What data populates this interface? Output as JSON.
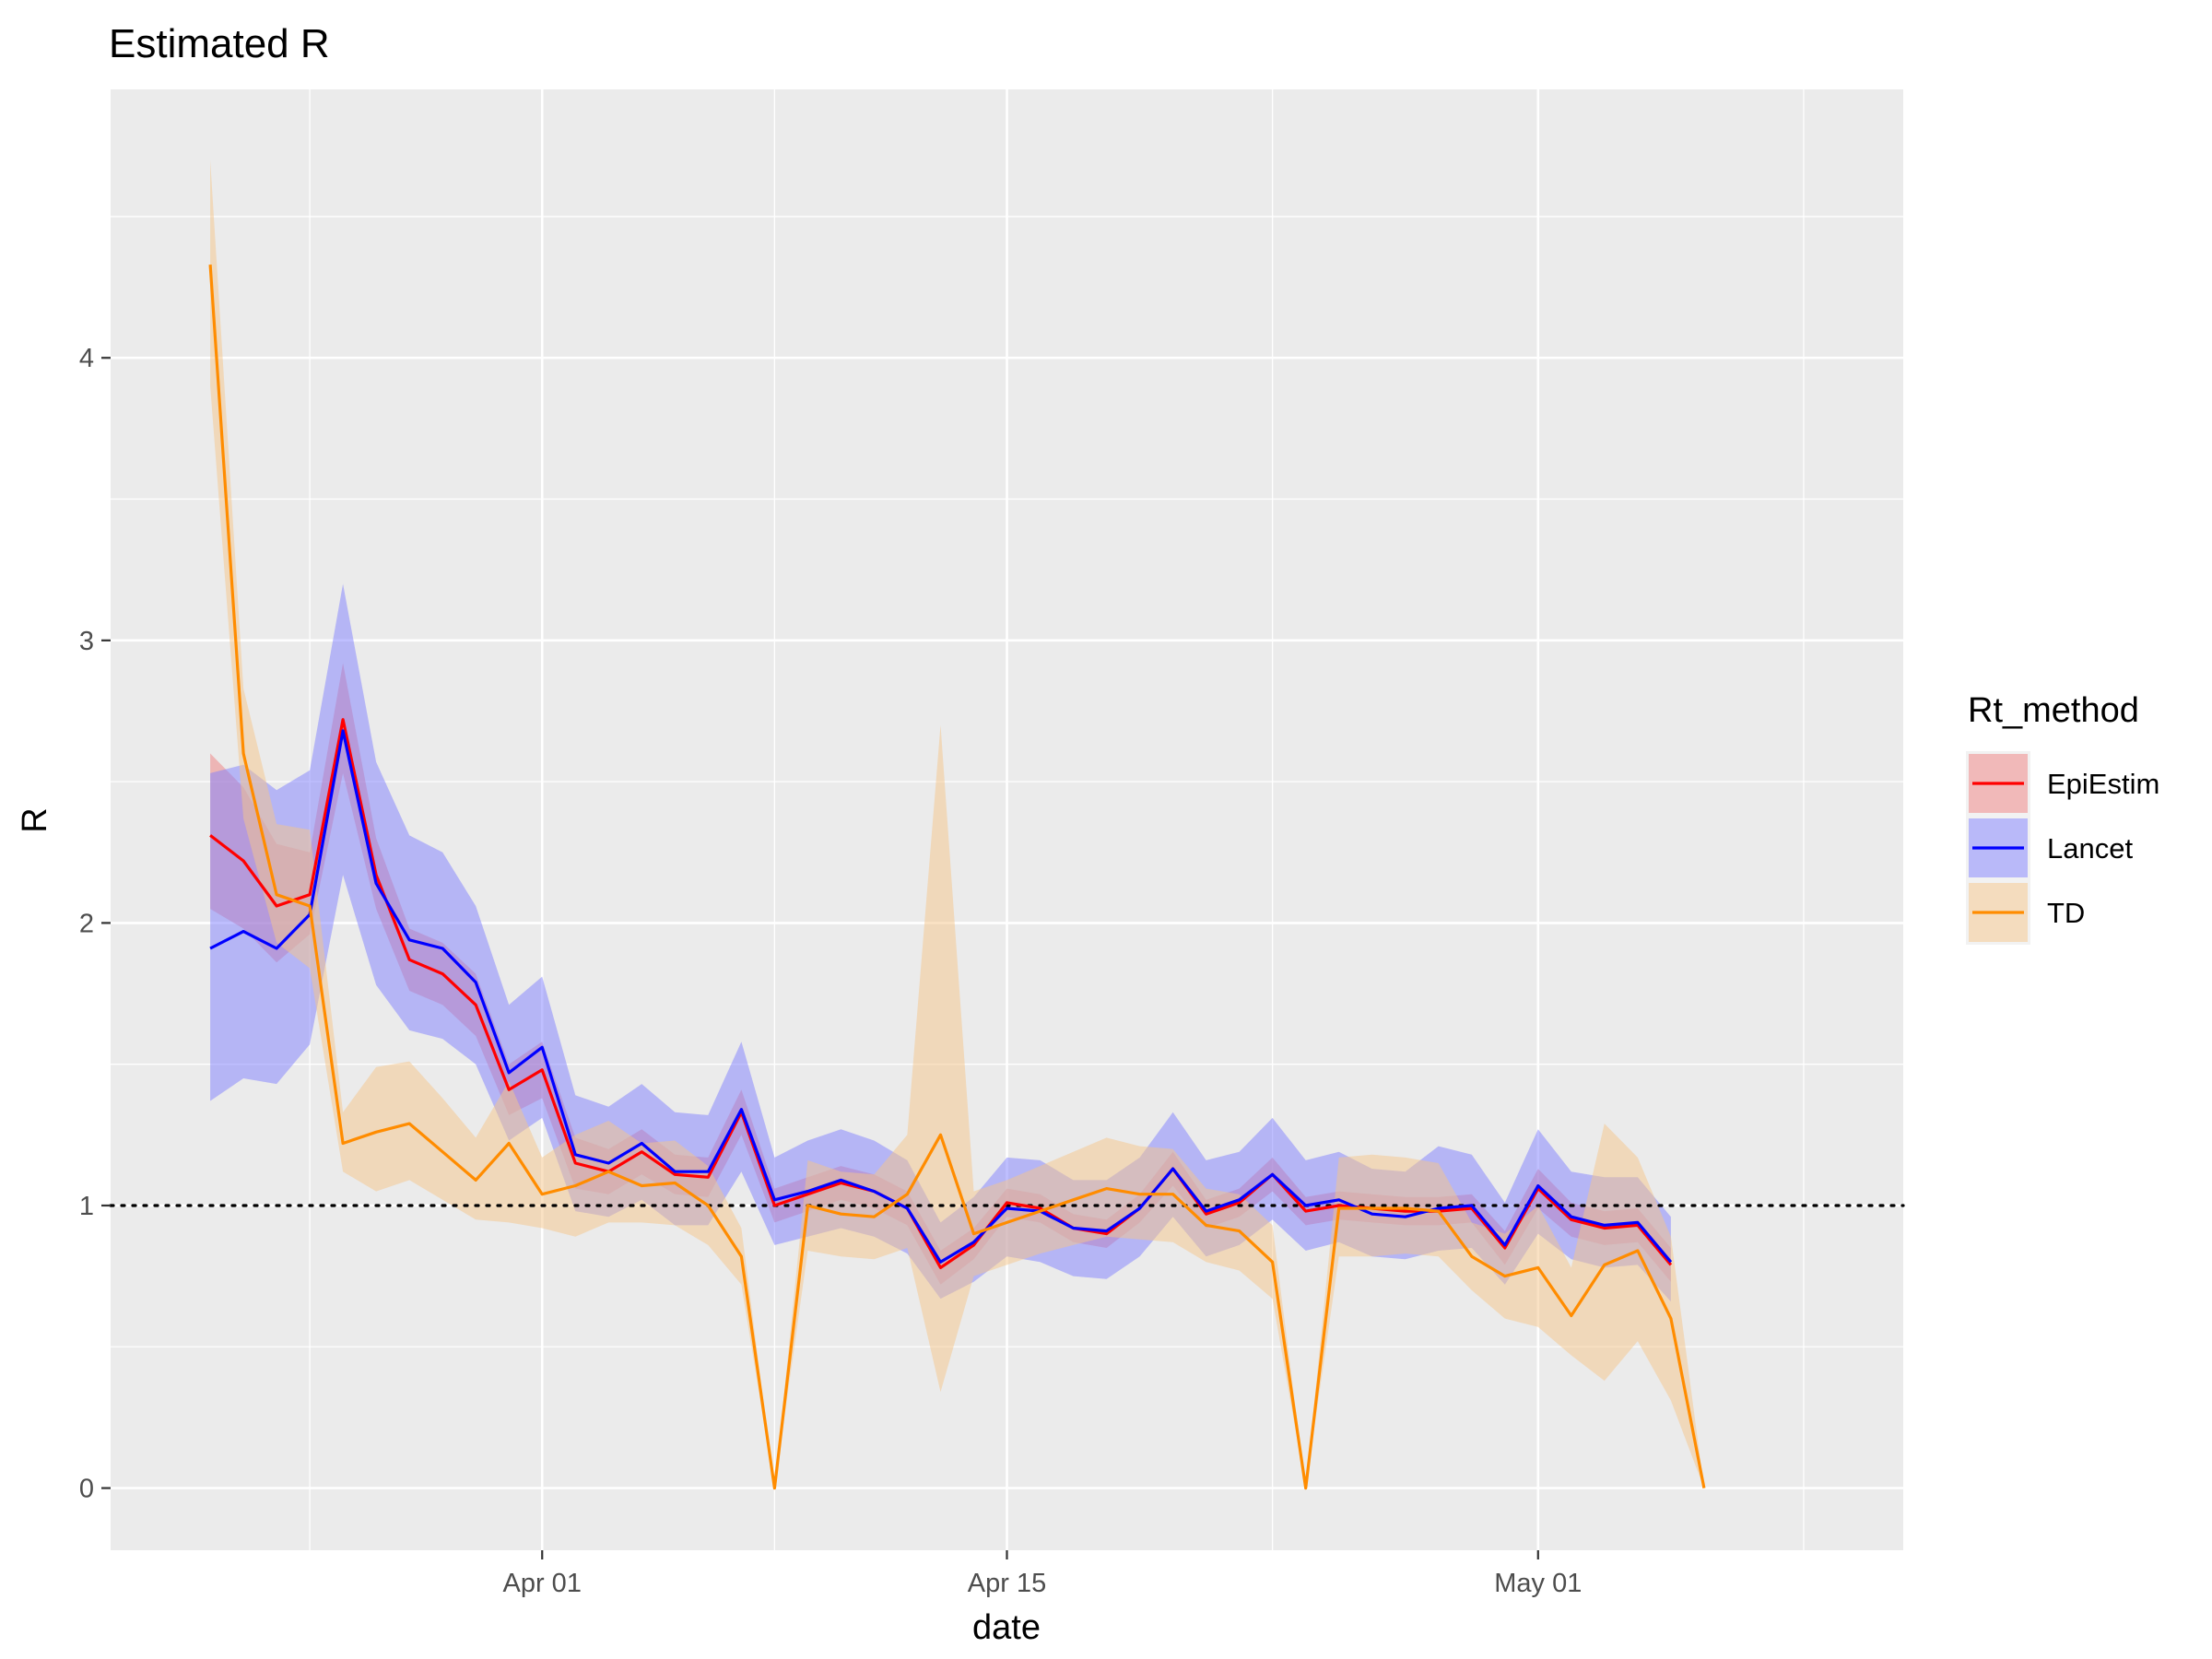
{
  "chart_data": {
    "type": "line",
    "title": "Estimated R",
    "xlabel": "date",
    "ylabel": "R",
    "x_start": "2020-03-22",
    "x_range": [
      "2020-03-19",
      "2020-05-12"
    ],
    "xticks": [
      {
        "label": "Apr 01",
        "date": "2020-04-01"
      },
      {
        "label": "Apr 15",
        "date": "2020-04-15"
      },
      {
        "label": "May 01",
        "date": "2020-05-01"
      }
    ],
    "ylim": [
      -0.22,
      4.95
    ],
    "yticks": [
      0,
      1,
      2,
      3,
      4
    ],
    "reference_line": {
      "y": 1,
      "style": "dotted"
    },
    "grid": true,
    "legend": {
      "title": "Rt_method",
      "position": "right"
    },
    "series": [
      {
        "name": "EpiEstim",
        "color": "#ff0000",
        "fill": "#f08080",
        "values": [
          2.31,
          2.22,
          2.06,
          2.1,
          2.72,
          2.17,
          1.87,
          1.82,
          1.71,
          1.41,
          1.48,
          1.15,
          1.12,
          1.19,
          1.11,
          1.1,
          1.33,
          1.0,
          1.04,
          1.08,
          1.05,
          0.99,
          0.78,
          0.86,
          1.01,
          0.99,
          0.92,
          0.9,
          0.99,
          1.13,
          0.97,
          1.01,
          1.11,
          0.98,
          1.0,
          0.99,
          0.98,
          0.98,
          0.99,
          0.85,
          1.06,
          0.95,
          0.92,
          0.93,
          0.79
        ],
        "lower": [
          2.05,
          1.98,
          1.86,
          1.96,
          2.53,
          2.05,
          1.76,
          1.71,
          1.6,
          1.32,
          1.38,
          1.06,
          1.04,
          1.11,
          1.04,
          1.03,
          1.25,
          0.94,
          0.98,
          1.02,
          0.99,
          0.93,
          0.72,
          0.81,
          0.96,
          0.94,
          0.87,
          0.85,
          0.94,
          1.07,
          0.92,
          0.96,
          1.05,
          0.93,
          0.95,
          0.94,
          0.93,
          0.93,
          0.94,
          0.79,
          0.99,
          0.89,
          0.86,
          0.87,
          0.73
        ],
        "upper": [
          2.6,
          2.48,
          2.28,
          2.25,
          2.92,
          2.3,
          1.98,
          1.93,
          1.82,
          1.5,
          1.58,
          1.24,
          1.2,
          1.27,
          1.18,
          1.17,
          1.41,
          1.06,
          1.1,
          1.14,
          1.11,
          1.05,
          0.84,
          0.92,
          1.06,
          1.04,
          0.97,
          0.95,
          1.04,
          1.19,
          1.02,
          1.06,
          1.17,
          1.03,
          1.05,
          1.04,
          1.03,
          1.03,
          1.04,
          0.91,
          1.13,
          1.01,
          0.98,
          0.99,
          0.85
        ]
      },
      {
        "name": "Lancet",
        "color": "#0000ff",
        "fill": "#8080ff",
        "values": [
          1.91,
          1.97,
          1.91,
          2.03,
          2.68,
          2.14,
          1.94,
          1.91,
          1.79,
          1.47,
          1.56,
          1.18,
          1.15,
          1.22,
          1.12,
          1.12,
          1.34,
          1.02,
          1.05,
          1.09,
          1.05,
          0.99,
          0.8,
          0.87,
          0.99,
          0.98,
          0.92,
          0.91,
          0.99,
          1.13,
          0.98,
          1.02,
          1.11,
          1.0,
          1.02,
          0.97,
          0.96,
          0.99,
          1.0,
          0.86,
          1.07,
          0.96,
          0.93,
          0.94,
          0.8
        ],
        "lower": [
          1.37,
          1.45,
          1.43,
          1.57,
          2.17,
          1.78,
          1.62,
          1.59,
          1.5,
          1.23,
          1.31,
          0.98,
          0.96,
          1.02,
          0.93,
          0.93,
          1.12,
          0.86,
          0.89,
          0.92,
          0.89,
          0.83,
          0.67,
          0.73,
          0.82,
          0.8,
          0.75,
          0.74,
          0.82,
          0.96,
          0.82,
          0.86,
          0.95,
          0.84,
          0.87,
          0.82,
          0.81,
          0.84,
          0.85,
          0.72,
          0.9,
          0.81,
          0.78,
          0.79,
          0.66
        ],
        "upper": [
          2.53,
          2.56,
          2.47,
          2.54,
          3.2,
          2.57,
          2.31,
          2.25,
          2.06,
          1.71,
          1.81,
          1.39,
          1.35,
          1.43,
          1.33,
          1.32,
          1.58,
          1.17,
          1.23,
          1.27,
          1.23,
          1.16,
          0.94,
          1.03,
          1.17,
          1.16,
          1.09,
          1.09,
          1.17,
          1.33,
          1.16,
          1.19,
          1.31,
          1.16,
          1.19,
          1.13,
          1.12,
          1.21,
          1.18,
          1.01,
          1.27,
          1.12,
          1.1,
          1.1,
          0.96
        ]
      },
      {
        "name": "TD",
        "color": "#ff8c00",
        "fill": "#f5c58a",
        "values": [
          4.33,
          2.6,
          2.1,
          2.06,
          1.22,
          1.26,
          1.29,
          1.19,
          1.09,
          1.22,
          1.04,
          1.07,
          1.12,
          1.07,
          1.08,
          1.0,
          0.82,
          0.0,
          1.0,
          0.97,
          0.96,
          1.04,
          1.25,
          0.9,
          0.94,
          0.98,
          1.02,
          1.06,
          1.04,
          1.04,
          0.93,
          0.91,
          0.8,
          0.0,
          0.99,
          0.99,
          0.99,
          0.98,
          0.82,
          0.75,
          0.78,
          0.61,
          0.79,
          0.84,
          0.6,
          0.0
        ],
        "lower": [
          3.9,
          2.37,
          1.93,
          1.84,
          1.12,
          1.05,
          1.09,
          1.02,
          0.95,
          0.94,
          0.92,
          0.89,
          0.94,
          0.94,
          0.93,
          0.86,
          0.72,
          0.0,
          0.84,
          0.82,
          0.81,
          0.85,
          0.34,
          0.75,
          0.79,
          0.83,
          0.86,
          0.89,
          0.88,
          0.87,
          0.8,
          0.77,
          0.67,
          0.0,
          0.82,
          0.82,
          0.83,
          0.82,
          0.7,
          0.6,
          0.57,
          0.47,
          0.38,
          0.52,
          0.31,
          0.0
        ],
        "upper": [
          4.7,
          2.83,
          2.35,
          2.33,
          1.33,
          1.49,
          1.51,
          1.38,
          1.24,
          1.44,
          1.17,
          1.25,
          1.3,
          1.22,
          1.23,
          1.14,
          0.92,
          0.0,
          1.16,
          1.12,
          1.11,
          1.25,
          2.7,
          1.05,
          1.09,
          1.14,
          1.19,
          1.24,
          1.21,
          1.2,
          1.06,
          1.04,
          0.93,
          0.0,
          1.17,
          1.18,
          1.17,
          1.15,
          0.94,
          0.9,
          1.0,
          0.78,
          1.29,
          1.17,
          0.89,
          0.0
        ]
      }
    ]
  }
}
